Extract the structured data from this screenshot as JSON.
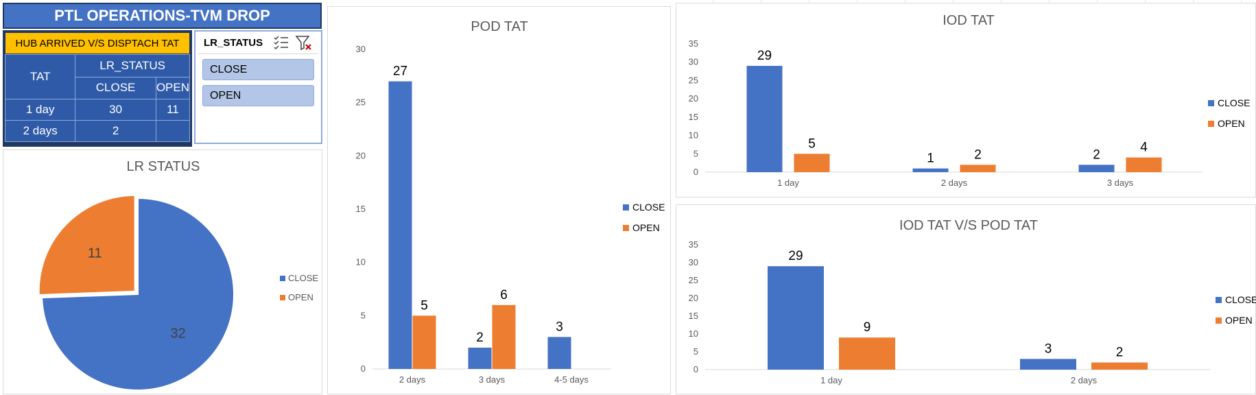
{
  "dashboard_title": "PTL OPERATIONS-TVM DROP",
  "colors": {
    "close": "#4472c4",
    "open": "#ed7d31"
  },
  "pivot": {
    "title": "HUB ARRIVED V/S DISPTACH TAT",
    "row_header": "TAT",
    "col_header": "LR_STATUS",
    "col_close": "CLOSE",
    "col_open": "OPEN",
    "rows": [
      {
        "tat": "1 day",
        "close": "30",
        "open": "11"
      },
      {
        "tat": "2 days",
        "close": "2",
        "open": ""
      }
    ]
  },
  "slicer": {
    "title": "LR_STATUS",
    "icons": [
      "multi-select-icon",
      "clear-filter-icon"
    ],
    "items": [
      "CLOSE",
      "OPEN"
    ]
  },
  "chart_data": [
    {
      "id": "lr_status",
      "type": "pie",
      "title": "LR STATUS",
      "categories": [
        "CLOSE",
        "OPEN"
      ],
      "values": [
        32,
        11
      ],
      "legend": "right"
    },
    {
      "id": "pod_tat",
      "type": "bar",
      "title": "POD TAT",
      "categories": [
        "2 days",
        "3 days",
        "4-5 days"
      ],
      "series": [
        {
          "name": "CLOSE",
          "values": [
            27,
            2,
            3
          ]
        },
        {
          "name": "OPEN",
          "values": [
            5,
            6,
            null
          ]
        }
      ],
      "ylim": [
        0,
        30
      ],
      "yticks": [
        0,
        5,
        10,
        15,
        20,
        25,
        30
      ],
      "legend": "right"
    },
    {
      "id": "iod_tat",
      "type": "bar",
      "title": "IOD TAT",
      "categories": [
        "1 day",
        "2 days",
        "3 days"
      ],
      "series": [
        {
          "name": "CLOSE",
          "values": [
            29,
            1,
            2
          ]
        },
        {
          "name": "OPEN",
          "values": [
            5,
            2,
            4
          ]
        }
      ],
      "ylim": [
        0,
        35
      ],
      "yticks": [
        0,
        5,
        10,
        15,
        20,
        25,
        30,
        35
      ],
      "legend": "right"
    },
    {
      "id": "iod_vs_pod",
      "type": "bar",
      "title": "IOD TAT V/S POD TAT",
      "categories": [
        "1 day",
        "2 days"
      ],
      "series": [
        {
          "name": "CLOSE",
          "values": [
            29,
            3
          ]
        },
        {
          "name": "OPEN",
          "values": [
            9,
            2
          ]
        }
      ],
      "ylim": [
        0,
        35
      ],
      "yticks": [
        0,
        5,
        10,
        15,
        20,
        25,
        30,
        35
      ],
      "legend": "right"
    }
  ]
}
